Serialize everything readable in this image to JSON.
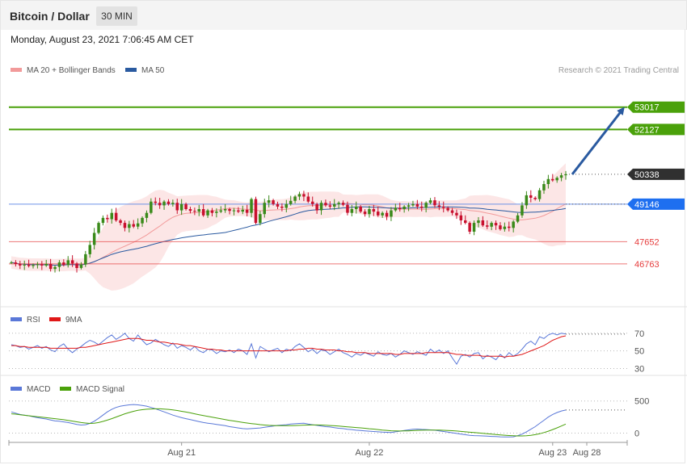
{
  "header": {
    "title": "Bitcoin / Dollar",
    "interval": "30 MIN",
    "datetime": "Monday, August 23, 2021 7:06:45 AM CET"
  },
  "colors": {
    "support": "#e63c3c",
    "resistance": "#4aa10a",
    "price": "#303030",
    "ma50": "#2a5aa0",
    "bands": "#f29a9a",
    "rsi": "#5a78d8",
    "rsi_ma": "#e01818",
    "macd": "#5a78d8",
    "macd_signal": "#4aa10a",
    "arrow": "#2a5aa0",
    "candle_up": "#3a8a1a",
    "candle_down": "#c8102e"
  },
  "chart_data": [
    {
      "type": "candlestick",
      "legend": [
        {
          "label": "MA 20 + Bollinger Bands",
          "color": "#f29a9a"
        },
        {
          "label": "MA 50",
          "color": "#2a5aa0"
        }
      ],
      "credit": "Research © 2021 Trading Central",
      "levels": [
        {
          "label": "53017",
          "value": 53017,
          "kind": "resistance"
        },
        {
          "label": "52127",
          "value": 52127,
          "kind": "resistance"
        },
        {
          "label": "50338",
          "value": 50338,
          "kind": "last"
        },
        {
          "label": "49146",
          "value": 49146,
          "kind": "pivot"
        },
        {
          "label": "47652",
          "value": 47652,
          "kind": "support"
        },
        {
          "label": "46763",
          "value": 46763,
          "kind": "support"
        }
      ],
      "x_ticks": [
        "Aug 21",
        "Aug 22",
        "Aug 23",
        "Aug 28"
      ],
      "ylim": [
        45150,
        54200
      ],
      "projection": {
        "from": 50338,
        "to": 53017
      },
      "close": [
        46820,
        46760,
        46700,
        46730,
        46680,
        46720,
        46750,
        46700,
        46760,
        46560,
        46640,
        46820,
        46720,
        46910,
        46780,
        46600,
        46740,
        47150,
        47520,
        48000,
        48400,
        48600,
        48550,
        48800,
        48500,
        48400,
        48200,
        48350,
        48250,
        48380,
        48600,
        48800,
        49250,
        49200,
        49100,
        49250,
        49150,
        49200,
        48900,
        49150,
        48950,
        48880,
        48850,
        48950,
        48700,
        48900,
        48800,
        48850,
        48900,
        48950,
        48880,
        48900,
        48850,
        48920,
        48800,
        49350,
        48400,
        48750,
        49200,
        49300,
        49150,
        49050,
        49000,
        49150,
        49280,
        49450,
        49550,
        49450,
        49250,
        49150,
        48900,
        49200,
        49100,
        49050,
        49150,
        49200,
        49120,
        48800,
        48950,
        49050,
        48850,
        48750,
        48950,
        48850,
        48700,
        48800,
        48650,
        48900,
        49000,
        48950,
        49050,
        49100,
        49150,
        49050,
        49000,
        49200,
        49300,
        49100,
        49050,
        49000,
        48900,
        48800,
        48700,
        48500,
        48400,
        48050,
        48400,
        48500,
        48300,
        48250,
        48400,
        48300,
        48150,
        48250,
        48200,
        48450,
        48700,
        49100,
        49500,
        49400,
        49350,
        49700,
        49950,
        50150,
        50100,
        50200,
        50300,
        50338
      ]
    },
    {
      "type": "line",
      "legend": [
        {
          "label": "RSI",
          "color": "#5a78d8"
        },
        {
          "label": "9MA",
          "color": "#e01818"
        }
      ],
      "ylim": [
        25,
        78
      ],
      "ticks": [
        "70",
        "50",
        "30"
      ],
      "series": [
        {
          "name": "RSI",
          "values": [
            57,
            56,
            54,
            55,
            52,
            54,
            56,
            53,
            55,
            51,
            49,
            55,
            58,
            52,
            48,
            52,
            55,
            59,
            62,
            60,
            57,
            61,
            65,
            68,
            63,
            66,
            70,
            64,
            61,
            68,
            62,
            57,
            59,
            63,
            60,
            57,
            55,
            59,
            53,
            56,
            54,
            51,
            55,
            50,
            48,
            52,
            51,
            47,
            50,
            49,
            51,
            48,
            52,
            50,
            46,
            58,
            42,
            55,
            52,
            49,
            51,
            53,
            48,
            52,
            50,
            55,
            58,
            54,
            49,
            52,
            47,
            51,
            50,
            46,
            49,
            52,
            48,
            46,
            43,
            47,
            45,
            48,
            46,
            44,
            49,
            46,
            45,
            47,
            43,
            46,
            50,
            48,
            46,
            49,
            47,
            45,
            52,
            48,
            51,
            47,
            50,
            42,
            35,
            44,
            46,
            43,
            47,
            48,
            41,
            45,
            43,
            40,
            46,
            42,
            48,
            44,
            47,
            52,
            58,
            61,
            57,
            66,
            64,
            68,
            70,
            68,
            70,
            69
          ]
        },
        {
          "name": "9MA",
          "values": [
            56,
            56,
            55,
            55,
            54,
            54,
            54,
            54,
            54,
            53,
            53,
            53,
            53,
            53,
            53,
            53,
            54,
            54,
            55,
            56,
            57,
            58,
            59,
            60,
            61,
            62,
            63,
            64,
            64,
            64,
            63,
            62,
            62,
            61,
            60,
            60,
            59,
            58,
            58,
            57,
            56,
            56,
            55,
            54,
            53,
            52,
            52,
            51,
            51,
            50,
            50,
            50,
            50,
            50,
            50,
            50,
            50,
            50,
            50,
            50,
            50,
            50,
            50,
            50,
            51,
            51,
            52,
            52,
            53,
            53,
            52,
            52,
            51,
            51,
            51,
            50,
            50,
            49,
            49,
            48,
            48,
            48,
            47,
            47,
            47,
            47,
            47,
            47,
            46,
            46,
            47,
            47,
            47,
            47,
            47,
            48,
            48,
            48,
            48,
            48,
            48,
            47,
            46,
            46,
            45,
            45,
            45,
            45,
            44,
            44,
            44,
            44,
            44,
            43,
            44,
            44,
            45,
            46,
            48,
            50,
            52,
            54,
            56,
            59,
            62,
            64,
            66,
            67
          ]
        }
      ]
    },
    {
      "type": "line",
      "legend": [
        {
          "label": "MACD",
          "color": "#5a78d8"
        },
        {
          "label": "MACD Signal",
          "color": "#4aa10a"
        }
      ],
      "ylim": [
        -120,
        610
      ],
      "ticks": [
        "500",
        "0"
      ],
      "series": [
        {
          "name": "MACD",
          "values": [
            330,
            310,
            290,
            280,
            270,
            255,
            240,
            230,
            220,
            205,
            190,
            185,
            175,
            165,
            150,
            135,
            125,
            130,
            150,
            185,
            230,
            280,
            330,
            370,
            400,
            420,
            430,
            440,
            445,
            440,
            430,
            420,
            400,
            380,
            355,
            330,
            305,
            280,
            260,
            240,
            225,
            210,
            195,
            180,
            165,
            155,
            145,
            135,
            125,
            115,
            100,
            90,
            80,
            70,
            65,
            70,
            75,
            80,
            90,
            100,
            110,
            120,
            125,
            130,
            140,
            145,
            150,
            155,
            140,
            130,
            120,
            110,
            100,
            95,
            85,
            75,
            70,
            60,
            55,
            45,
            40,
            35,
            30,
            25,
            20,
            15,
            12,
            10,
            20,
            30,
            40,
            50,
            60,
            62,
            58,
            55,
            50,
            45,
            35,
            25,
            15,
            5,
            -5,
            -15,
            -25,
            -35,
            -40,
            -42,
            -45,
            -48,
            -52,
            -55,
            -58,
            -60,
            -60,
            -58,
            -40,
            -15,
            20,
            60,
            100,
            150,
            200,
            250,
            290,
            320,
            345,
            360
          ]
        },
        {
          "name": "MACD Signal",
          "values": [
            300,
            295,
            285,
            278,
            270,
            262,
            255,
            248,
            240,
            232,
            225,
            217,
            208,
            198,
            187,
            176,
            165,
            157,
            150,
            155,
            165,
            182,
            202,
            225,
            250,
            275,
            300,
            320,
            340,
            355,
            365,
            372,
            376,
            378,
            378,
            375,
            370,
            362,
            352,
            340,
            328,
            315,
            300,
            287,
            273,
            260,
            247,
            235,
            223,
            211,
            199,
            188,
            177,
            167,
            157,
            148,
            140,
            132,
            126,
            121,
            118,
            116,
            115,
            115,
            116,
            118,
            121,
            124,
            126,
            127,
            127,
            125,
            122,
            118,
            114,
            109,
            104,
            98,
            93,
            87,
            81,
            75,
            68,
            62,
            55,
            48,
            42,
            36,
            33,
            32,
            33,
            35,
            38,
            42,
            45,
            47,
            48,
            48,
            47,
            44,
            41,
            37,
            32,
            26,
            20,
            14,
            8,
            2,
            -4,
            -10,
            -16,
            -22,
            -28,
            -33,
            -38,
            -42,
            -44,
            -45,
            -42,
            -35,
            -24,
            -10,
            8,
            30,
            55,
            82,
            110,
            140
          ]
        }
      ]
    }
  ]
}
